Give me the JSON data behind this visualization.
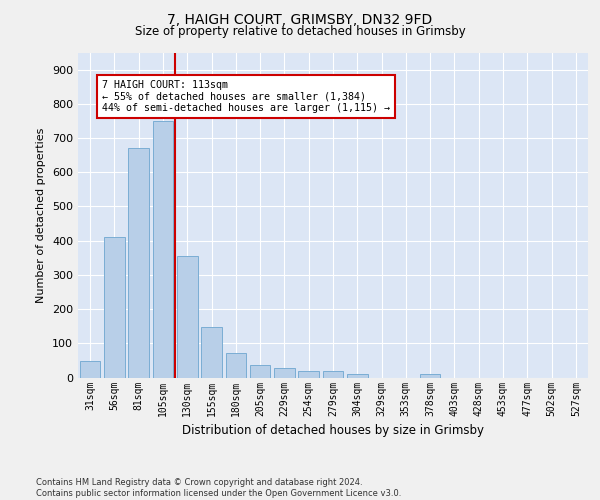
{
  "title_line1": "7, HAIGH COURT, GRIMSBY, DN32 9FD",
  "title_line2": "Size of property relative to detached houses in Grimsby",
  "xlabel": "Distribution of detached houses by size in Grimsby",
  "ylabel": "Number of detached properties",
  "categories": [
    "31sqm",
    "56sqm",
    "81sqm",
    "105sqm",
    "130sqm",
    "155sqm",
    "180sqm",
    "205sqm",
    "229sqm",
    "254sqm",
    "279sqm",
    "304sqm",
    "329sqm",
    "353sqm",
    "378sqm",
    "403sqm",
    "428sqm",
    "453sqm",
    "477sqm",
    "502sqm",
    "527sqm"
  ],
  "values": [
    48,
    410,
    670,
    750,
    355,
    148,
    72,
    37,
    28,
    18,
    18,
    10,
    0,
    0,
    10,
    0,
    0,
    0,
    0,
    0,
    0
  ],
  "bar_color": "#b8cfe8",
  "bar_edge_color": "#7aadd4",
  "fig_bg_color": "#f0f0f0",
  "ax_bg_color": "#dce6f5",
  "grid_color": "#ffffff",
  "property_line_x": 3.5,
  "annotation_text": "7 HAIGH COURT: 113sqm\n← 55% of detached houses are smaller (1,384)\n44% of semi-detached houses are larger (1,115) →",
  "annotation_box_color": "#ffffff",
  "annotation_box_edge": "#cc0000",
  "vline_color": "#cc0000",
  "ylim": [
    0,
    950
  ],
  "yticks": [
    0,
    100,
    200,
    300,
    400,
    500,
    600,
    700,
    800,
    900
  ],
  "footnote": "Contains HM Land Registry data © Crown copyright and database right 2024.\nContains public sector information licensed under the Open Government Licence v3.0."
}
